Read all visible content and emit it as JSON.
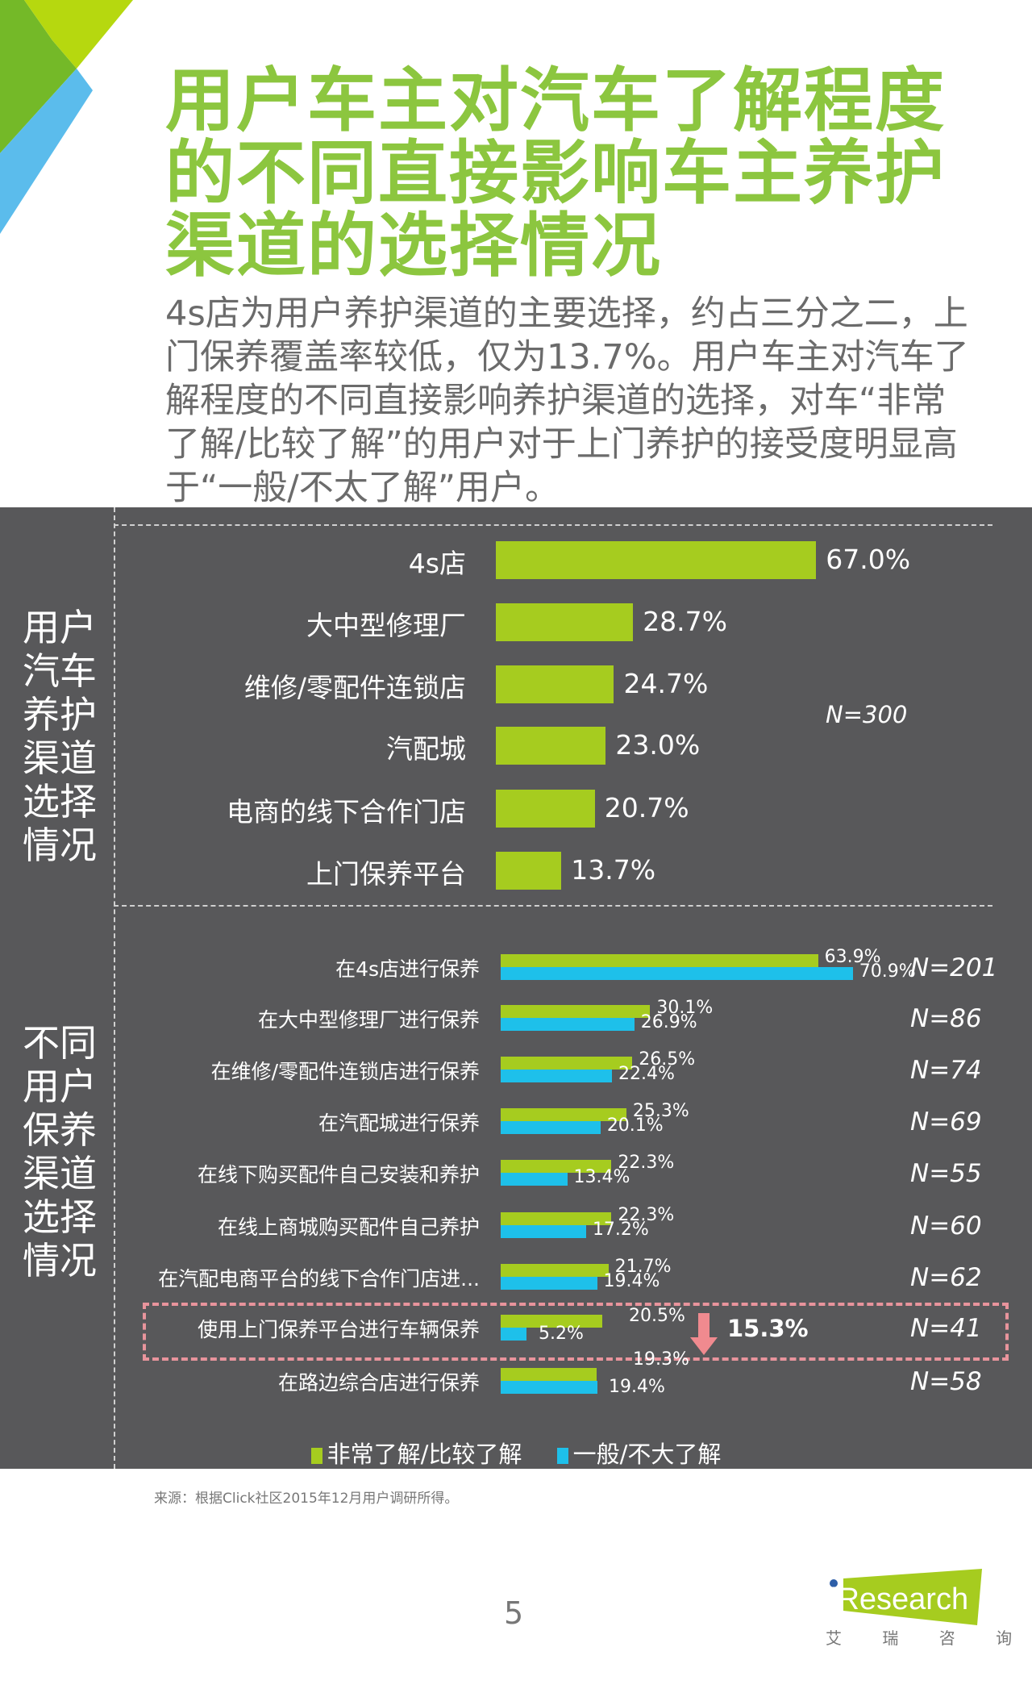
{
  "title": "用户车主对汽车了解程度的不同直接影响车主养护渠道的选择情况",
  "subtitle": "4s店为用户养护渠道的主要选择，约占三分之二，上门保养覆盖率较低，仅为13.7%。用户车主对汽车了解程度的不同直接影响养护渠道的选择，对车“非常了解/比较了解”的用户对于上门养护的接受度明显高于“一般/不太了解”用户。",
  "colors": {
    "title": "#8cc63f",
    "green": "#a6cc1f",
    "blue": "#1ec0ea",
    "panel": "#58585a",
    "highlight": "#e8949c"
  },
  "chart_data": [
    {
      "type": "bar",
      "orientation": "horizontal",
      "side_title": "用户汽车养护渠道选择情况",
      "note": "N=300",
      "categories": [
        "4s店",
        "大中型修理厂",
        "维修/零配件连锁店",
        "汽配城",
        "电商的线下合作门店",
        "上门保养平台"
      ],
      "values": [
        67.0,
        28.7,
        24.7,
        23.0,
        20.7,
        13.7
      ],
      "labels": [
        "67.0%",
        "28.7%",
        "24.7%",
        "23.0%",
        "20.7%",
        "13.7%"
      ]
    },
    {
      "type": "bar",
      "orientation": "horizontal",
      "side_title": "不同用户保养渠道选择情况",
      "categories": [
        "在4s店进行保养",
        "在大中型修理厂进行保养",
        "在维修/零配件连锁店进行保养",
        "在汽配城进行保养",
        "在线下购买配件自己安装和养护",
        "在线上商城购买配件自己养护",
        "在汽配电商平台的线下合作门店进...",
        "使用上门保养平台进行车辆保养",
        "在路边综合店进行保养"
      ],
      "n_labels": [
        "N=201",
        "N=86",
        "N=74",
        "N=69",
        "N=55",
        "N=60",
        "N=62",
        "N=41",
        "N=58"
      ],
      "series": [
        {
          "name": "非常了解/比较了解",
          "values": [
            63.9,
            30.1,
            26.5,
            25.3,
            22.3,
            22.3,
            21.7,
            20.5,
            19.3
          ],
          "labels": [
            "63.9%",
            "30.1%",
            "26.5%",
            "25.3%",
            "22.3%",
            "22.3%",
            "21.7%",
            "20.5%",
            "19.3%"
          ]
        },
        {
          "name": "一般/不大了解",
          "values": [
            70.9,
            26.9,
            22.4,
            20.1,
            13.4,
            17.2,
            19.4,
            5.2,
            19.4
          ],
          "labels": [
            "70.9%",
            "26.9%",
            "22.4%",
            "20.1%",
            "13.4%",
            "17.2%",
            "19.4%",
            "5.2%",
            "19.4%"
          ]
        }
      ],
      "highlight": {
        "row": 7,
        "difference": "15.3%",
        "direction": "down"
      },
      "legend": "bottom"
    }
  ],
  "source": "来源：根据Click社区2015年12月用户调研所得。",
  "page_number": "5",
  "logo": {
    "brand": "iResearch",
    "chinese": "艾 瑞 咨 询"
  }
}
